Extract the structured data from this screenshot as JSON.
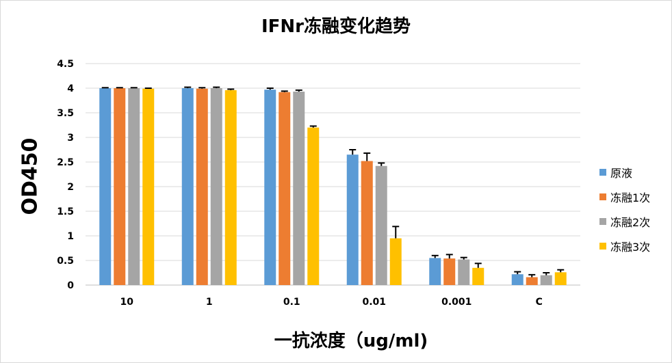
{
  "chart_data": {
    "type": "bar",
    "title": "IFNr冻融变化趋势",
    "xlabel": "一抗浓度（ug/ml)",
    "ylabel": "OD450",
    "categories": [
      "10",
      "1",
      "0.1",
      "0.01",
      "0.001",
      "C"
    ],
    "ylim": [
      0,
      4.5
    ],
    "yticks": [
      "0",
      "0.5",
      "1",
      "1.5",
      "2",
      "2.5",
      "3",
      "3.5",
      "4",
      "4.5"
    ],
    "grid": true,
    "legend_position": "right",
    "series": [
      {
        "name": "原液",
        "color": "#5b9bd5",
        "values": [
          4.0,
          4.0,
          3.97,
          2.65,
          0.55,
          0.22
        ],
        "errors": [
          0.01,
          0.02,
          0.03,
          0.1,
          0.05,
          0.05
        ]
      },
      {
        "name": "冻融1次",
        "color": "#ed7d31",
        "values": [
          4.0,
          3.99,
          3.92,
          2.52,
          0.54,
          0.16
        ],
        "errors": [
          0.01,
          0.02,
          0.02,
          0.16,
          0.08,
          0.05
        ]
      },
      {
        "name": "冻融2次",
        "color": "#a5a5a5",
        "values": [
          4.0,
          4.0,
          3.93,
          2.42,
          0.52,
          0.2
        ],
        "errors": [
          0.01,
          0.02,
          0.03,
          0.06,
          0.04,
          0.05
        ]
      },
      {
        "name": "冻融3次",
        "color": "#ffc000",
        "values": [
          3.99,
          3.96,
          3.2,
          0.95,
          0.35,
          0.26
        ],
        "errors": [
          0.01,
          0.02,
          0.03,
          0.24,
          0.09,
          0.05
        ]
      }
    ]
  }
}
